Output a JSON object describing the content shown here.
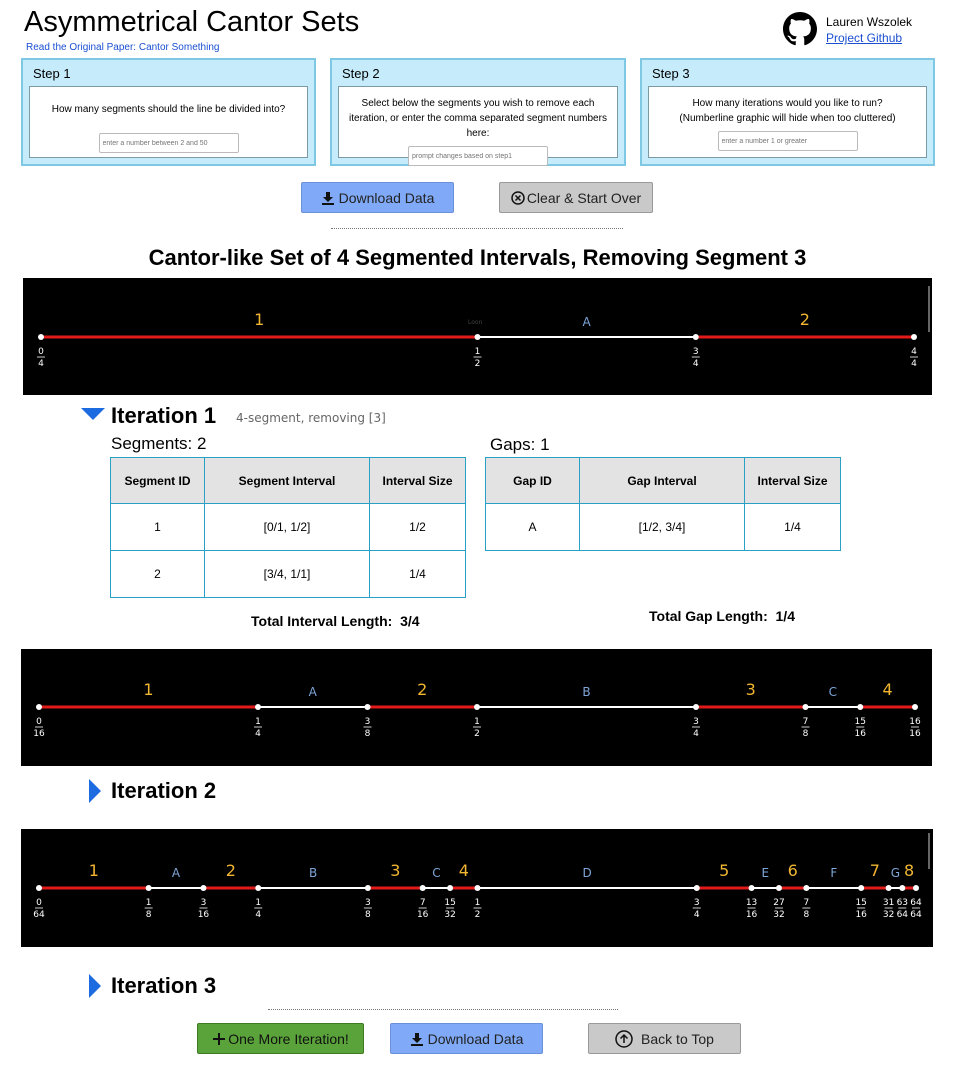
{
  "header": {
    "title": "Asymmetrical Cantor Sets",
    "paper_link": "Read the Original Paper: Cantor Something",
    "author": "Lauren Wszolek",
    "github_link": "Project Github"
  },
  "steps": [
    {
      "title": "Step 1",
      "text": "How many segments should the line be divided into?",
      "placeholder": "enter a number between 2 and 50"
    },
    {
      "title": "Step 2",
      "text": "Select below the segments you wish to remove each iteration, or enter the comma separated segment numbers here:",
      "placeholder": "prompt changes based on step1"
    },
    {
      "title": "Step 3",
      "text": "How many iterations would you like to run? (Numberline graphic will hide when too cluttered)",
      "placeholder": "enter a number 1 or greater"
    }
  ],
  "toolbar": {
    "download_label": "Download Data",
    "clear_label": "Clear & Start Over"
  },
  "set_title": "Cantor-like Set of 4 Segmented Intervals, Removing Segment 3",
  "numberline0": {
    "segments": [
      {
        "label": "1",
        "a": 0,
        "b": 0.5
      },
      {
        "label": "2",
        "a": 0.75,
        "b": 1
      }
    ],
    "gaps": [
      {
        "label": "A",
        "a": 0.5,
        "b": 0.75
      }
    ],
    "ticks": [
      {
        "v": 0,
        "n": "0",
        "d": "4"
      },
      {
        "v": 0.5,
        "n": "1",
        "d": "2"
      },
      {
        "v": 0.75,
        "n": "3",
        "d": "4"
      },
      {
        "v": 1,
        "n": "4",
        "d": "4"
      }
    ],
    "faint_text": "Loon"
  },
  "iteration1": {
    "title": "Iteration 1",
    "subtitle": "4-segment, removing [3]",
    "segments_caption": "Segments: 2",
    "gaps_caption": "Gaps: 1",
    "segment_headers": [
      "Segment ID",
      "Segment Interval",
      "Interval Size"
    ],
    "segment_rows": [
      [
        "1",
        "[0/1, 1/2]",
        "1/2"
      ],
      [
        "2",
        "[3/4, 1/1]",
        "1/4"
      ]
    ],
    "gap_headers": [
      "Gap ID",
      "Gap Interval",
      "Interval Size"
    ],
    "gap_rows": [
      [
        "A",
        "[1/2, 3/4]",
        "1/4"
      ]
    ],
    "total_interval_label": "Total Interval Length:",
    "total_interval_value": "3/4",
    "total_gap_label": "Total Gap Length:",
    "total_gap_value": "1/4"
  },
  "numberline1": {
    "segments": [
      {
        "label": "1",
        "a": 0,
        "b": 0.25
      },
      {
        "label": "2",
        "a": 0.375,
        "b": 0.5
      },
      {
        "label": "3",
        "a": 0.75,
        "b": 0.875
      },
      {
        "label": "4",
        "a": 0.9375,
        "b": 1
      }
    ],
    "gaps": [
      {
        "label": "A",
        "a": 0.25,
        "b": 0.375
      },
      {
        "label": "B",
        "a": 0.5,
        "b": 0.75
      },
      {
        "label": "C",
        "a": 0.875,
        "b": 0.9375
      }
    ],
    "ticks": [
      {
        "v": 0,
        "n": "0",
        "d": "16"
      },
      {
        "v": 0.25,
        "n": "1",
        "d": "4"
      },
      {
        "v": 0.375,
        "n": "3",
        "d": "8"
      },
      {
        "v": 0.5,
        "n": "1",
        "d": "2"
      },
      {
        "v": 0.75,
        "n": "3",
        "d": "4"
      },
      {
        "v": 0.875,
        "n": "7",
        "d": "8"
      },
      {
        "v": 0.9375,
        "n": "15",
        "d": "16"
      },
      {
        "v": 1,
        "n": "16",
        "d": "16"
      }
    ]
  },
  "iteration2": {
    "title": "Iteration 2"
  },
  "numberline2": {
    "segments": [
      {
        "label": "1",
        "a": 0,
        "b": 0.125
      },
      {
        "label": "2",
        "a": 0.1875,
        "b": 0.25
      },
      {
        "label": "3",
        "a": 0.375,
        "b": 0.4375
      },
      {
        "label": "4",
        "a": 0.46875,
        "b": 0.5
      },
      {
        "label": "5",
        "a": 0.75,
        "b": 0.8125
      },
      {
        "label": "6",
        "a": 0.84375,
        "b": 0.875
      },
      {
        "label": "7",
        "a": 0.9375,
        "b": 0.96875
      },
      {
        "label": "8",
        "a": 0.984375,
        "b": 1
      }
    ],
    "gaps": [
      {
        "label": "A",
        "a": 0.125,
        "b": 0.1875
      },
      {
        "label": "B",
        "a": 0.25,
        "b": 0.375
      },
      {
        "label": "C",
        "a": 0.4375,
        "b": 0.46875
      },
      {
        "label": "D",
        "a": 0.5,
        "b": 0.75
      },
      {
        "label": "E",
        "a": 0.8125,
        "b": 0.84375
      },
      {
        "label": "F",
        "a": 0.875,
        "b": 0.9375
      },
      {
        "label": "G",
        "a": 0.96875,
        "b": 0.984375
      }
    ],
    "ticks": [
      {
        "v": 0,
        "n": "0",
        "d": "64"
      },
      {
        "v": 0.125,
        "n": "1",
        "d": "8"
      },
      {
        "v": 0.1875,
        "n": "3",
        "d": "16"
      },
      {
        "v": 0.25,
        "n": "1",
        "d": "4"
      },
      {
        "v": 0.375,
        "n": "3",
        "d": "8"
      },
      {
        "v": 0.4375,
        "n": "7",
        "d": "16"
      },
      {
        "v": 0.46875,
        "n": "15",
        "d": "32"
      },
      {
        "v": 0.5,
        "n": "1",
        "d": "2"
      },
      {
        "v": 0.75,
        "n": "3",
        "d": "4"
      },
      {
        "v": 0.8125,
        "n": "13",
        "d": "16"
      },
      {
        "v": 0.84375,
        "n": "27",
        "d": "32"
      },
      {
        "v": 0.875,
        "n": "7",
        "d": "8"
      },
      {
        "v": 0.9375,
        "n": "15",
        "d": "16"
      },
      {
        "v": 0.96875,
        "n": "31",
        "d": "32"
      },
      {
        "v": 0.984375,
        "n": "63",
        "d": "64"
      },
      {
        "v": 1,
        "n": "64",
        "d": "64"
      }
    ]
  },
  "iteration3": {
    "title": "Iteration 3"
  },
  "footer": {
    "more_label": "One More Iteration!",
    "download_label": "Download Data",
    "top_label": "Back to Top"
  },
  "colors": {
    "segment": "#e31a1a",
    "gap": "#ffffff",
    "segment_label": "#f2b632",
    "gap_label": "#7ea6d8",
    "accent": "#1d6be0"
  }
}
